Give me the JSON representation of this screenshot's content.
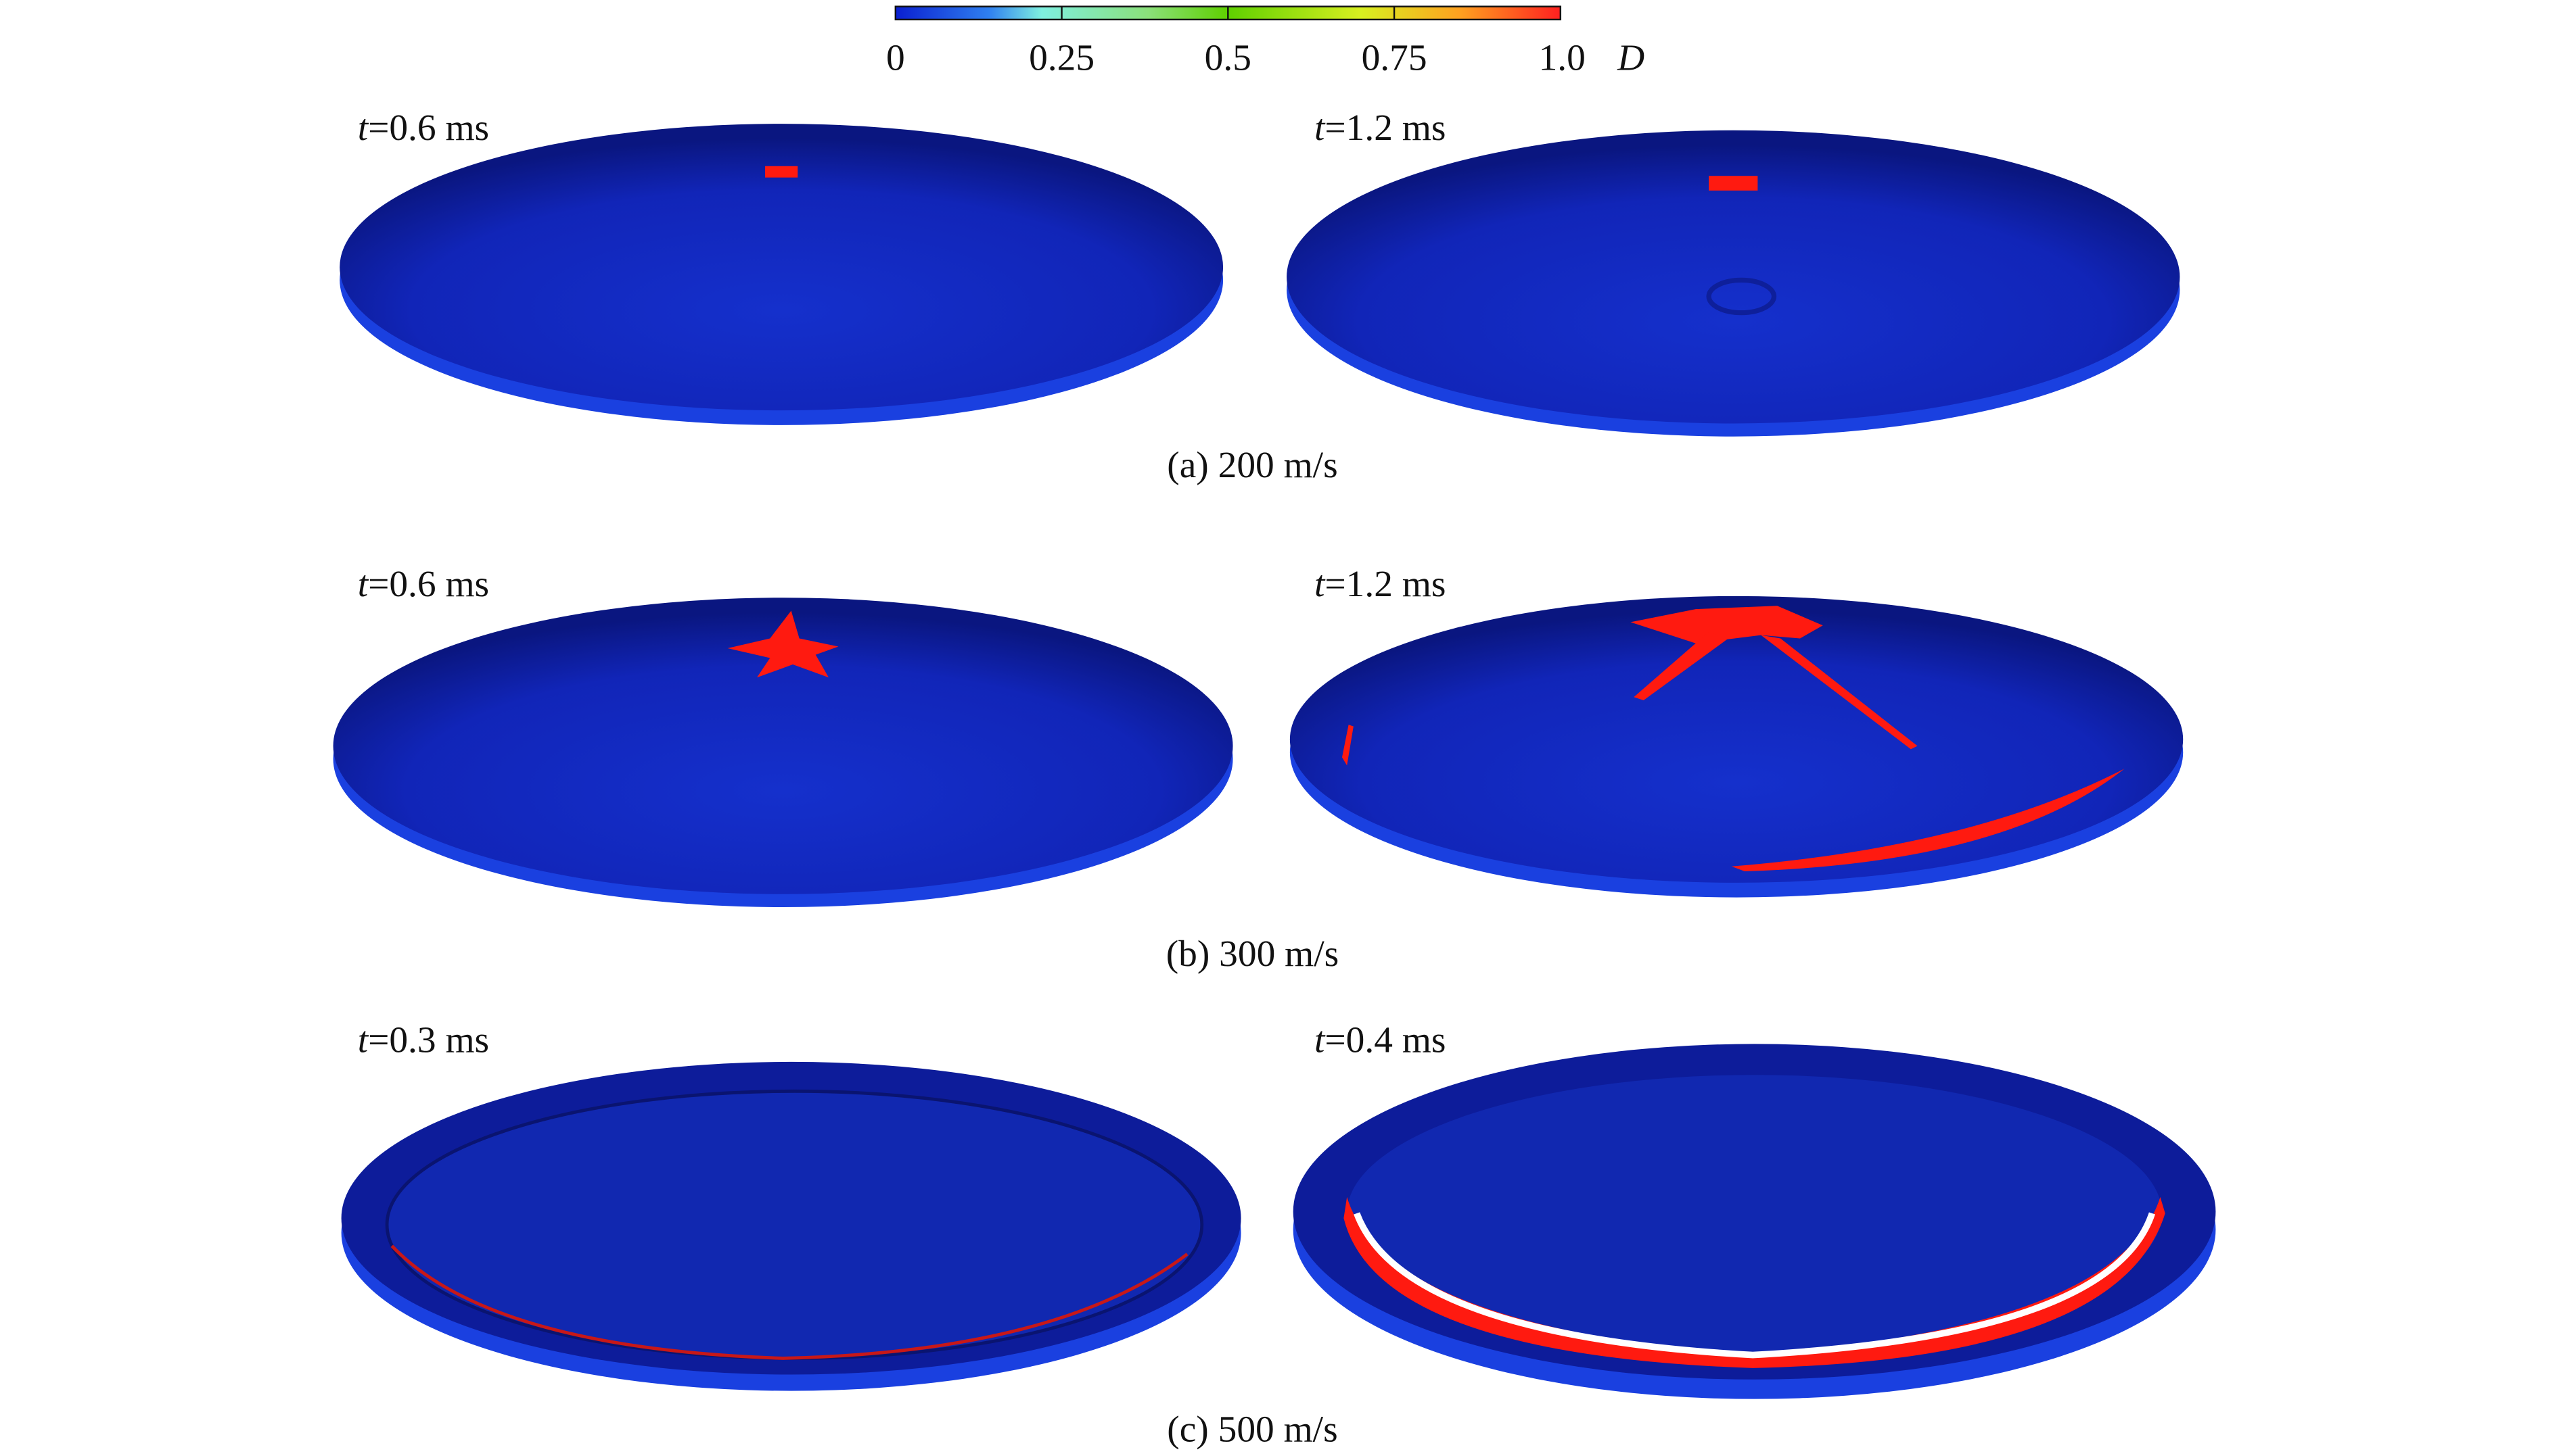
{
  "colorbar": {
    "ticks": [
      "0",
      "0.25",
      "0.5",
      "0.75",
      "1.0"
    ],
    "variable": "D",
    "colors": [
      "#0a1fd0",
      "#2f7ff0",
      "#7ff0e0",
      "#8be07a",
      "#5fd000",
      "#d8f020",
      "#ffa020",
      "#ff2020"
    ]
  },
  "panels": [
    {
      "caption": "(a) 200 m/s",
      "frames": [
        {
          "var": "t",
          "time": "=0.6 ms"
        },
        {
          "var": "t",
          "time": "=1.2 ms"
        }
      ]
    },
    {
      "caption": "(b) 300 m/s",
      "frames": [
        {
          "var": "t",
          "time": "=0.6 ms"
        },
        {
          "var": "t",
          "time": "=1.2 ms"
        }
      ]
    },
    {
      "caption": "(c) 500 m/s",
      "frames": [
        {
          "var": "t",
          "time": "=0.3 ms"
        },
        {
          "var": "t",
          "time": "=0.4 ms"
        }
      ]
    }
  ],
  "colors": {
    "plate_dark": "#0a1478",
    "plate": "#1028c0",
    "rim": "#1a40e0",
    "damage": "#ff1a10"
  }
}
